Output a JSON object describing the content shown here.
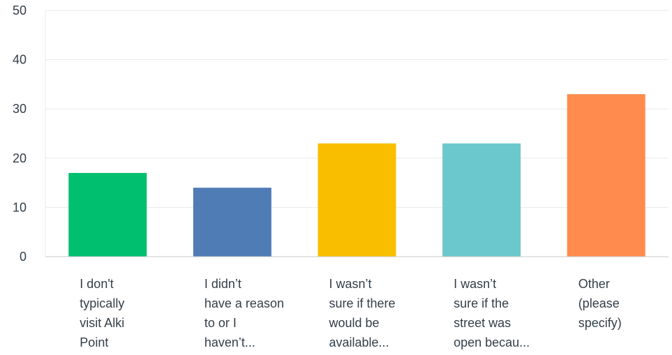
{
  "chart_data": {
    "type": "bar",
    "title": "",
    "xlabel": "",
    "ylabel": "",
    "ylim": [
      0,
      50
    ],
    "yticks": [
      0,
      10,
      20,
      30,
      40,
      50
    ],
    "grid": true,
    "legend": "none",
    "categories": [
      "I don't\ntypically\nvisit Alki\nPoint",
      "I didn’t\nhave a reason\nto or I\nhaven’t...",
      "I wasn’t\nsure if there\nwould be\navailable...",
      "I wasn’t\nsure if the\nstreet was\nopen becau...",
      "Other\n(please\nspecify)"
    ],
    "values": [
      17,
      14,
      23,
      23,
      33
    ],
    "colors": [
      "#00bf6f",
      "#507cb6",
      "#f9be00",
      "#6bc8cd",
      "#ff8b4f"
    ]
  }
}
